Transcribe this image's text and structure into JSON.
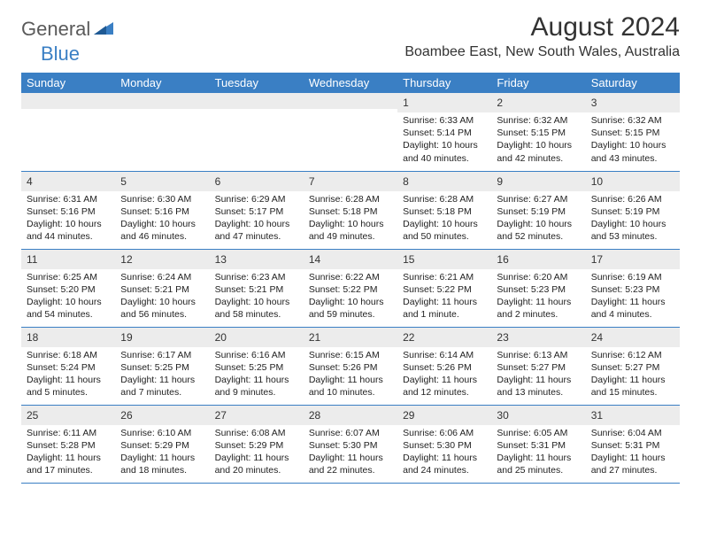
{
  "logo": {
    "text1": "General",
    "text2": "Blue"
  },
  "title": "August 2024",
  "location": "Boambee East, New South Wales, Australia",
  "colors": {
    "header_bg": "#3a7fc4",
    "header_text": "#ffffff",
    "daynum_bg": "#ececec",
    "border": "#3a7fc4",
    "body_text": "#222222",
    "logo_gray": "#5a5a5a",
    "logo_blue": "#3a7fc4"
  },
  "weekdays": [
    "Sunday",
    "Monday",
    "Tuesday",
    "Wednesday",
    "Thursday",
    "Friday",
    "Saturday"
  ],
  "weeks": [
    [
      null,
      null,
      null,
      null,
      {
        "n": "1",
        "sr": "6:33 AM",
        "ss": "5:14 PM",
        "dl": "10 hours and 40 minutes."
      },
      {
        "n": "2",
        "sr": "6:32 AM",
        "ss": "5:15 PM",
        "dl": "10 hours and 42 minutes."
      },
      {
        "n": "3",
        "sr": "6:32 AM",
        "ss": "5:15 PM",
        "dl": "10 hours and 43 minutes."
      }
    ],
    [
      {
        "n": "4",
        "sr": "6:31 AM",
        "ss": "5:16 PM",
        "dl": "10 hours and 44 minutes."
      },
      {
        "n": "5",
        "sr": "6:30 AM",
        "ss": "5:16 PM",
        "dl": "10 hours and 46 minutes."
      },
      {
        "n": "6",
        "sr": "6:29 AM",
        "ss": "5:17 PM",
        "dl": "10 hours and 47 minutes."
      },
      {
        "n": "7",
        "sr": "6:28 AM",
        "ss": "5:18 PM",
        "dl": "10 hours and 49 minutes."
      },
      {
        "n": "8",
        "sr": "6:28 AM",
        "ss": "5:18 PM",
        "dl": "10 hours and 50 minutes."
      },
      {
        "n": "9",
        "sr": "6:27 AM",
        "ss": "5:19 PM",
        "dl": "10 hours and 52 minutes."
      },
      {
        "n": "10",
        "sr": "6:26 AM",
        "ss": "5:19 PM",
        "dl": "10 hours and 53 minutes."
      }
    ],
    [
      {
        "n": "11",
        "sr": "6:25 AM",
        "ss": "5:20 PM",
        "dl": "10 hours and 54 minutes."
      },
      {
        "n": "12",
        "sr": "6:24 AM",
        "ss": "5:21 PM",
        "dl": "10 hours and 56 minutes."
      },
      {
        "n": "13",
        "sr": "6:23 AM",
        "ss": "5:21 PM",
        "dl": "10 hours and 58 minutes."
      },
      {
        "n": "14",
        "sr": "6:22 AM",
        "ss": "5:22 PM",
        "dl": "10 hours and 59 minutes."
      },
      {
        "n": "15",
        "sr": "6:21 AM",
        "ss": "5:22 PM",
        "dl": "11 hours and 1 minute."
      },
      {
        "n": "16",
        "sr": "6:20 AM",
        "ss": "5:23 PM",
        "dl": "11 hours and 2 minutes."
      },
      {
        "n": "17",
        "sr": "6:19 AM",
        "ss": "5:23 PM",
        "dl": "11 hours and 4 minutes."
      }
    ],
    [
      {
        "n": "18",
        "sr": "6:18 AM",
        "ss": "5:24 PM",
        "dl": "11 hours and 5 minutes."
      },
      {
        "n": "19",
        "sr": "6:17 AM",
        "ss": "5:25 PM",
        "dl": "11 hours and 7 minutes."
      },
      {
        "n": "20",
        "sr": "6:16 AM",
        "ss": "5:25 PM",
        "dl": "11 hours and 9 minutes."
      },
      {
        "n": "21",
        "sr": "6:15 AM",
        "ss": "5:26 PM",
        "dl": "11 hours and 10 minutes."
      },
      {
        "n": "22",
        "sr": "6:14 AM",
        "ss": "5:26 PM",
        "dl": "11 hours and 12 minutes."
      },
      {
        "n": "23",
        "sr": "6:13 AM",
        "ss": "5:27 PM",
        "dl": "11 hours and 13 minutes."
      },
      {
        "n": "24",
        "sr": "6:12 AM",
        "ss": "5:27 PM",
        "dl": "11 hours and 15 minutes."
      }
    ],
    [
      {
        "n": "25",
        "sr": "6:11 AM",
        "ss": "5:28 PM",
        "dl": "11 hours and 17 minutes."
      },
      {
        "n": "26",
        "sr": "6:10 AM",
        "ss": "5:29 PM",
        "dl": "11 hours and 18 minutes."
      },
      {
        "n": "27",
        "sr": "6:08 AM",
        "ss": "5:29 PM",
        "dl": "11 hours and 20 minutes."
      },
      {
        "n": "28",
        "sr": "6:07 AM",
        "ss": "5:30 PM",
        "dl": "11 hours and 22 minutes."
      },
      {
        "n": "29",
        "sr": "6:06 AM",
        "ss": "5:30 PM",
        "dl": "11 hours and 24 minutes."
      },
      {
        "n": "30",
        "sr": "6:05 AM",
        "ss": "5:31 PM",
        "dl": "11 hours and 25 minutes."
      },
      {
        "n": "31",
        "sr": "6:04 AM",
        "ss": "5:31 PM",
        "dl": "11 hours and 27 minutes."
      }
    ]
  ],
  "labels": {
    "sunrise": "Sunrise:",
    "sunset": "Sunset:",
    "daylight": "Daylight:"
  }
}
